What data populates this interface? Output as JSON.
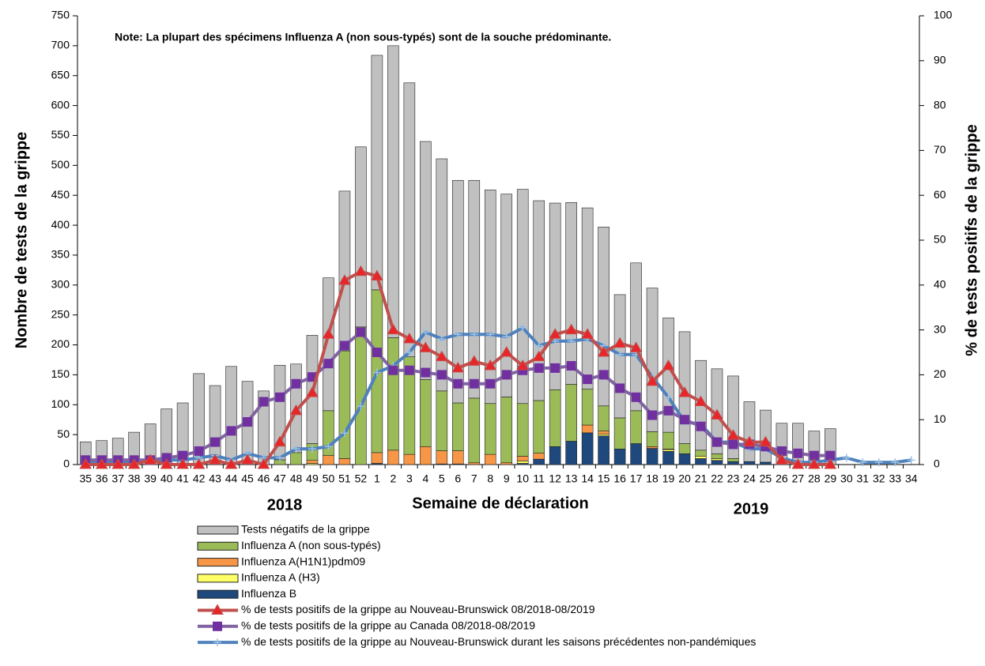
{
  "chart_data": {
    "type": "bar",
    "note": "Note: La plupart des spécimens Influenza A (non sous-typés) sont de la souche prédominante.",
    "x_label": "Semaine de déclaration",
    "y_label": "Nombre de tests de la grippe",
    "y2_label": "% de tests positifs de la grippe",
    "year_labels": [
      "2018",
      "2019"
    ],
    "categories": [
      "35",
      "36",
      "37",
      "38",
      "39",
      "40",
      "41",
      "42",
      "43",
      "44",
      "45",
      "46",
      "47",
      "48",
      "49",
      "50",
      "51",
      "52",
      "1",
      "2",
      "3",
      "4",
      "5",
      "6",
      "7",
      "8",
      "9",
      "10",
      "11",
      "12",
      "13",
      "14",
      "15",
      "16",
      "17",
      "18",
      "19",
      "20",
      "21",
      "22",
      "23",
      "24",
      "25",
      "26",
      "27",
      "28",
      "29",
      "30",
      "31",
      "32",
      "33",
      "34"
    ],
    "ylim": [
      0,
      750
    ],
    "yticks": [
      0,
      50,
      100,
      150,
      200,
      250,
      300,
      350,
      400,
      450,
      500,
      550,
      600,
      650,
      700,
      750
    ],
    "y2lim": [
      0,
      100
    ],
    "y2ticks": [
      0,
      10,
      20,
      30,
      40,
      50,
      60,
      70,
      80,
      90,
      100
    ],
    "grid": false,
    "series": [
      {
        "name": "Tests négatifs de la grippe",
        "type": "bar",
        "color": "#c0c0c0",
        "values": [
          38,
          40,
          44,
          54,
          68,
          93,
          103,
          152,
          132,
          164,
          139,
          123,
          158,
          148,
          181,
          222,
          267,
          301,
          392,
          488,
          458,
          398,
          388,
          372,
          364,
          357,
          339,
          358,
          334,
          312,
          304,
          303,
          299,
          206,
          247,
          240,
          191,
          187,
          150,
          142,
          138,
          100,
          87,
          69,
          69,
          56,
          60,
          null,
          null,
          null,
          null,
          null
        ]
      },
      {
        "name": "Influenza A (non sous-typés)",
        "type": "bar",
        "color": "#9bbb59",
        "values": [
          0,
          0,
          0,
          0,
          0,
          0,
          0,
          0,
          0,
          0,
          0,
          0,
          8,
          20,
          28,
          75,
          180,
          230,
          272,
          188,
          163,
          112,
          100,
          80,
          108,
          85,
          110,
          88,
          88,
          95,
          95,
          60,
          42,
          52,
          55,
          25,
          28,
          17,
          10,
          8,
          5,
          0,
          0,
          0,
          0,
          0,
          0,
          null,
          null,
          null,
          null,
          null
        ]
      },
      {
        "name": "Influenza A(H1N1)pdm09",
        "type": "bar",
        "color": "#f79646",
        "values": [
          0,
          0,
          0,
          0,
          0,
          0,
          0,
          0,
          0,
          0,
          0,
          0,
          0,
          0,
          5,
          15,
          10,
          0,
          18,
          24,
          17,
          30,
          22,
          22,
          3,
          17,
          3,
          8,
          10,
          0,
          0,
          13,
          5,
          0,
          0,
          3,
          1,
          0,
          0,
          0,
          0,
          0,
          0,
          0,
          0,
          0,
          0,
          null,
          null,
          null,
          null,
          null
        ]
      },
      {
        "name": "Influenza A (H3)",
        "type": "bar",
        "color": "#ffff66",
        "values": [
          0,
          0,
          0,
          0,
          0,
          0,
          0,
          0,
          0,
          0,
          0,
          0,
          0,
          0,
          2,
          0,
          0,
          0,
          0,
          0,
          0,
          0,
          0,
          0,
          0,
          0,
          0,
          4,
          0,
          0,
          0,
          0,
          3,
          0,
          0,
          0,
          3,
          0,
          4,
          3,
          0,
          0,
          0,
          0,
          0,
          0,
          0,
          null,
          null,
          null,
          null,
          null
        ]
      },
      {
        "name": "Influenza B",
        "type": "bar",
        "color": "#1f497d",
        "values": [
          0,
          0,
          0,
          0,
          0,
          0,
          0,
          0,
          0,
          0,
          0,
          0,
          0,
          0,
          0,
          0,
          0,
          0,
          2,
          0,
          0,
          0,
          1,
          1,
          0,
          0,
          0,
          2,
          9,
          30,
          39,
          53,
          48,
          26,
          35,
          27,
          22,
          18,
          10,
          7,
          5,
          5,
          4,
          0,
          0,
          0,
          0,
          null,
          null,
          null,
          null,
          null
        ]
      },
      {
        "name": "% de tests positifs de la grippe  au Nouveau-Brunswick 08/2018-08/2019",
        "type": "line",
        "axis": "y2",
        "color": "#c0504d",
        "marker": "triangle",
        "marker_color": "#e8262a",
        "values": [
          0,
          0,
          0,
          0,
          1,
          0,
          0,
          0,
          1,
          0,
          1,
          0,
          5,
          12,
          16,
          29,
          41,
          43,
          42,
          30,
          28,
          26,
          24,
          21.5,
          23,
          22,
          25,
          22,
          24,
          29,
          30,
          29,
          25,
          27,
          26,
          18.5,
          22,
          16,
          14,
          11,
          6.5,
          5,
          5,
          1,
          0,
          0,
          0,
          null,
          null,
          null,
          null,
          null
        ]
      },
      {
        "name": "% de tests positifs de la grippe  au Canada 08/2018-08/2019",
        "type": "line",
        "axis": "y2",
        "color": "#8064a2",
        "marker": "square",
        "marker_color": "#7030a0",
        "values": [
          1,
          1,
          1,
          1,
          1,
          1.5,
          2,
          3,
          5,
          7.5,
          9.5,
          14,
          15,
          18,
          19.5,
          22.5,
          26.5,
          29.5,
          25,
          21,
          21,
          20.5,
          20,
          18,
          18,
          18,
          20,
          21,
          21.5,
          21.5,
          22,
          19,
          20,
          17,
          15,
          11,
          12,
          10,
          8.5,
          5,
          4.5,
          4.5,
          4,
          3,
          2.5,
          2,
          2,
          null,
          null,
          null,
          null,
          null
        ]
      },
      {
        "name": "% de tests positifs de la grippe  au Nouveau-Brunswick durant les saisons précédentes non-pandémiques",
        "type": "line",
        "axis": "y2",
        "color": "#4f81bd",
        "marker": "plus",
        "marker_color": "#9dc3e6",
        "values": [
          0.5,
          0.5,
          0.5,
          0.5,
          1,
          1,
          1,
          1.5,
          2,
          1,
          2.5,
          1.5,
          1.5,
          3.5,
          3.5,
          4,
          7,
          13,
          20.5,
          22,
          25,
          29.5,
          28,
          29,
          29,
          29,
          28.5,
          30.5,
          26.5,
          27.5,
          27.5,
          28,
          26.5,
          24.5,
          24.5,
          19.5,
          15,
          9.5,
          9,
          5,
          5,
          3.5,
          3.5,
          1.5,
          0.5,
          0.5,
          1,
          1.5,
          0.5,
          0.5,
          0.5,
          1
        ]
      }
    ]
  }
}
